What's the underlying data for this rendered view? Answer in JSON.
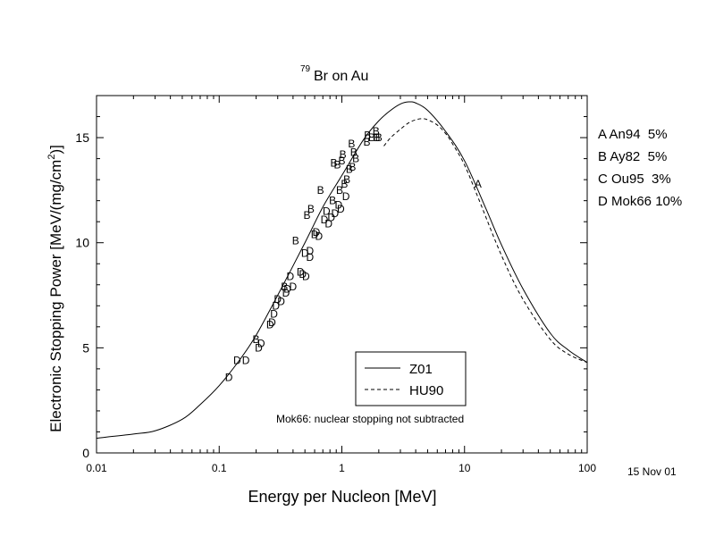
{
  "chart_data": {
    "type": "line",
    "title": {
      "isotope": "79",
      "text": "Br on Au"
    },
    "xlabel": "Energy per Nucleon [MeV]",
    "ylabel": {
      "main": "Electronic Stopping Power [MeV/(mg/cm",
      "sup": "2",
      "end": ")]"
    },
    "x_scale": "log",
    "xlim": [
      0.01,
      100
    ],
    "ylim": [
      0,
      17
    ],
    "x_ticks": [
      {
        "value": 0.01,
        "label": "0.01"
      },
      {
        "value": 0.1,
        "label": "0.1"
      },
      {
        "value": 1,
        "label": "1"
      },
      {
        "value": 10,
        "label": "10"
      },
      {
        "value": 100,
        "label": "100"
      }
    ],
    "y_ticks": [
      {
        "value": 0,
        "label": "0"
      },
      {
        "value": 5,
        "label": "5"
      },
      {
        "value": 10,
        "label": "10"
      },
      {
        "value": 15,
        "label": "15"
      }
    ],
    "series": [
      {
        "name": "Z01",
        "style": "solid",
        "x": [
          0.01,
          0.02,
          0.03,
          0.05,
          0.07,
          0.1,
          0.15,
          0.2,
          0.3,
          0.5,
          0.7,
          1,
          1.5,
          2,
          2.5,
          3,
          3.5,
          4,
          5,
          7,
          10,
          15,
          20,
          30,
          50,
          70,
          100
        ],
        "y": [
          0.7,
          0.9,
          1.05,
          1.6,
          2.3,
          3.2,
          4.5,
          5.6,
          7.5,
          10.0,
          11.7,
          13.2,
          14.9,
          15.8,
          16.3,
          16.6,
          16.7,
          16.65,
          16.3,
          15.3,
          13.9,
          11.6,
          9.9,
          7.8,
          5.7,
          4.9,
          4.3
        ]
      },
      {
        "name": "HU90",
        "style": "dashed",
        "x": [
          2.2,
          2.5,
          3,
          3.5,
          4,
          4.5,
          5,
          6,
          7,
          8,
          10,
          13,
          20,
          30,
          50,
          70,
          100
        ],
        "y": [
          14.6,
          15.0,
          15.4,
          15.7,
          15.85,
          15.9,
          15.85,
          15.6,
          15.2,
          14.7,
          13.7,
          12.1,
          9.4,
          7.3,
          5.4,
          4.7,
          4.3
        ]
      }
    ],
    "markers": [
      {
        "label": "D",
        "x": 0.12,
        "y": 3.6
      },
      {
        "label": "D",
        "x": 0.14,
        "y": 4.4
      },
      {
        "label": "D",
        "x": 0.165,
        "y": 4.4
      },
      {
        "label": "B",
        "x": 0.2,
        "y": 5.4
      },
      {
        "label": "D",
        "x": 0.21,
        "y": 5.0
      },
      {
        "label": "D",
        "x": 0.22,
        "y": 5.2
      },
      {
        "label": "D",
        "x": 0.26,
        "y": 6.1
      },
      {
        "label": "D",
        "x": 0.27,
        "y": 6.2
      },
      {
        "label": "D",
        "x": 0.28,
        "y": 6.6
      },
      {
        "label": "D",
        "x": 0.29,
        "y": 7.0
      },
      {
        "label": "D",
        "x": 0.3,
        "y": 7.3
      },
      {
        "label": "D",
        "x": 0.32,
        "y": 7.2
      },
      {
        "label": "B",
        "x": 0.34,
        "y": 7.9
      },
      {
        "label": "D",
        "x": 0.35,
        "y": 7.6
      },
      {
        "label": "D",
        "x": 0.36,
        "y": 7.8
      },
      {
        "label": "D",
        "x": 0.38,
        "y": 8.4
      },
      {
        "label": "D",
        "x": 0.4,
        "y": 7.9
      },
      {
        "label": "B",
        "x": 0.42,
        "y": 10.1
      },
      {
        "label": "D",
        "x": 0.46,
        "y": 8.6
      },
      {
        "label": "D",
        "x": 0.48,
        "y": 8.5
      },
      {
        "label": "D",
        "x": 0.5,
        "y": 9.5
      },
      {
        "label": "D",
        "x": 0.51,
        "y": 8.4
      },
      {
        "label": "B",
        "x": 0.52,
        "y": 11.3
      },
      {
        "label": "D",
        "x": 0.55,
        "y": 9.6
      },
      {
        "label": "D",
        "x": 0.55,
        "y": 9.3
      },
      {
        "label": "B",
        "x": 0.56,
        "y": 11.6
      },
      {
        "label": "D",
        "x": 0.6,
        "y": 10.4
      },
      {
        "label": "D",
        "x": 0.62,
        "y": 10.5
      },
      {
        "label": "D",
        "x": 0.65,
        "y": 10.3
      },
      {
        "label": "B",
        "x": 0.67,
        "y": 12.5
      },
      {
        "label": "D",
        "x": 0.72,
        "y": 11.1
      },
      {
        "label": "D",
        "x": 0.75,
        "y": 11.5
      },
      {
        "label": "D",
        "x": 0.78,
        "y": 10.9
      },
      {
        "label": "D",
        "x": 0.82,
        "y": 11.2
      },
      {
        "label": "B",
        "x": 0.84,
        "y": 12.0
      },
      {
        "label": "B",
        "x": 0.86,
        "y": 13.8
      },
      {
        "label": "D",
        "x": 0.88,
        "y": 11.4
      },
      {
        "label": "B",
        "x": 0.92,
        "y": 13.7
      },
      {
        "label": "D",
        "x": 0.94,
        "y": 11.8
      },
      {
        "label": "B",
        "x": 0.96,
        "y": 12.5
      },
      {
        "label": "D",
        "x": 0.98,
        "y": 11.6
      },
      {
        "label": "B",
        "x": 1.0,
        "y": 13.9
      },
      {
        "label": "B",
        "x": 1.02,
        "y": 14.2
      },
      {
        "label": "B",
        "x": 1.05,
        "y": 12.8
      },
      {
        "label": "D",
        "x": 1.08,
        "y": 12.2
      },
      {
        "label": "B",
        "x": 1.1,
        "y": 13.0
      },
      {
        "label": "B",
        "x": 1.15,
        "y": 13.5
      },
      {
        "label": "B",
        "x": 1.2,
        "y": 14.7
      },
      {
        "label": "B",
        "x": 1.22,
        "y": 13.6
      },
      {
        "label": "B",
        "x": 1.25,
        "y": 14.3
      },
      {
        "label": "B",
        "x": 1.3,
        "y": 14.0
      },
      {
        "label": "B",
        "x": 1.6,
        "y": 14.8
      },
      {
        "label": "B",
        "x": 1.62,
        "y": 15.1
      },
      {
        "label": "B",
        "x": 1.75,
        "y": 15.0
      },
      {
        "label": "B",
        "x": 1.9,
        "y": 15.3
      },
      {
        "label": "B",
        "x": 1.92,
        "y": 15.0
      },
      {
        "label": "B",
        "x": 2.0,
        "y": 15.0
      },
      {
        "label": "A",
        "x": 12.9,
        "y": 12.8
      }
    ],
    "legend": {
      "placement": "bottom-center",
      "entries": [
        {
          "name": "Z01",
          "style": "solid"
        },
        {
          "name": "HU90",
          "style": "dashed"
        }
      ]
    },
    "annotation": "Mok66: nuclear stopping not subtracted",
    "references": [
      "A An94  5%",
      "B Ay82  5%",
      "C Ou95  3%",
      "D Mok66 10%"
    ],
    "date": "15 Nov 01",
    "grid": false
  }
}
